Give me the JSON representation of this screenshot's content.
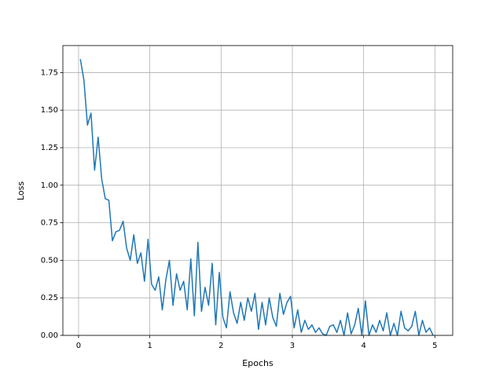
{
  "chart_data": {
    "type": "line",
    "xlabel": "Epochs",
    "ylabel": "Loss",
    "x": [
      0.025,
      0.075,
      0.125,
      0.175,
      0.225,
      0.275,
      0.325,
      0.375,
      0.425,
      0.475,
      0.525,
      0.575,
      0.625,
      0.675,
      0.725,
      0.775,
      0.825,
      0.875,
      0.925,
      0.975,
      1.025,
      1.075,
      1.125,
      1.175,
      1.225,
      1.275,
      1.325,
      1.375,
      1.425,
      1.475,
      1.525,
      1.575,
      1.625,
      1.675,
      1.725,
      1.775,
      1.825,
      1.875,
      1.925,
      1.975,
      2.025,
      2.075,
      2.125,
      2.175,
      2.225,
      2.275,
      2.325,
      2.375,
      2.425,
      2.475,
      2.525,
      2.575,
      2.625,
      2.675,
      2.725,
      2.775,
      2.825,
      2.875,
      2.925,
      2.975,
      3.025,
      3.075,
      3.125,
      3.175,
      3.225,
      3.275,
      3.325,
      3.375,
      3.425,
      3.475,
      3.525,
      3.575,
      3.625,
      3.675,
      3.725,
      3.775,
      3.825,
      3.875,
      3.925,
      3.975,
      4.025,
      4.075,
      4.125,
      4.175,
      4.225,
      4.275,
      4.325,
      4.375,
      4.425,
      4.475,
      4.525,
      4.575,
      4.625,
      4.675,
      4.725,
      4.775,
      4.825,
      4.875,
      4.925,
      4.975
    ],
    "series": [
      {
        "color": "#1f77b4",
        "values": [
          1.84,
          1.7,
          1.4,
          1.48,
          1.1,
          1.32,
          1.04,
          0.91,
          0.9,
          0.63,
          0.69,
          0.7,
          0.76,
          0.58,
          0.5,
          0.67,
          0.48,
          0.55,
          0.36,
          0.64,
          0.34,
          0.3,
          0.39,
          0.17,
          0.37,
          0.5,
          0.2,
          0.41,
          0.3,
          0.36,
          0.17,
          0.51,
          0.13,
          0.62,
          0.16,
          0.32,
          0.2,
          0.48,
          0.07,
          0.42,
          0.12,
          0.05,
          0.29,
          0.15,
          0.08,
          0.22,
          0.1,
          0.25,
          0.16,
          0.28,
          0.04,
          0.22,
          0.07,
          0.25,
          0.12,
          0.06,
          0.28,
          0.14,
          0.22,
          0.26,
          0.05,
          0.17,
          0.02,
          0.1,
          0.04,
          0.07,
          0.02,
          0.05,
          0.01,
          0.0,
          0.06,
          0.07,
          0.02,
          0.1,
          0.0,
          0.15,
          0.01,
          0.07,
          0.18,
          0.0,
          0.23,
          0.0,
          0.07,
          0.02,
          0.1,
          0.03,
          0.15,
          0.0,
          0.08,
          0.0,
          0.16,
          0.05,
          0.03,
          0.06,
          0.16,
          0.0,
          0.1,
          0.02,
          0.05,
          0.0
        ]
      }
    ],
    "xlim": [
      -0.22,
      5.25
    ],
    "ylim": [
      0,
      1.93
    ],
    "xticks": [
      0,
      1,
      2,
      3,
      4,
      5
    ],
    "yticks": [
      {
        "value": 0,
        "label": "0.00"
      },
      {
        "value": 0.25,
        "label": "0.25"
      },
      {
        "value": 0.5,
        "label": "0.50"
      },
      {
        "value": 0.75,
        "label": "0.75"
      },
      {
        "value": 1,
        "label": "1.00"
      },
      {
        "value": 1.25,
        "label": "1.25"
      },
      {
        "value": 1.5,
        "label": "1.50"
      },
      {
        "value": 1.75,
        "label": "1.75"
      }
    ],
    "grid": true
  }
}
